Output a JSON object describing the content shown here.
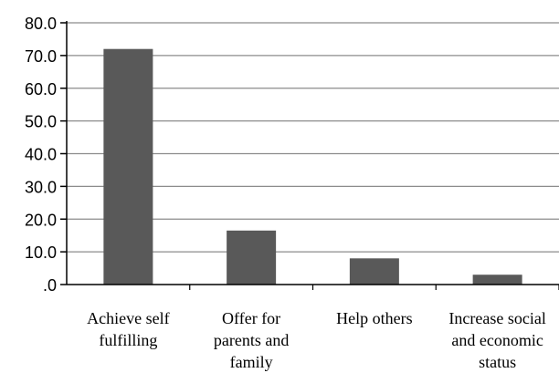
{
  "chart_data": {
    "type": "bar",
    "categories": [
      [
        "Achieve self",
        "fulfilling"
      ],
      [
        "Offer for",
        "parents and",
        "family"
      ],
      [
        "Help others"
      ],
      [
        "Increase social",
        "and economic",
        "status"
      ]
    ],
    "values": [
      72.0,
      16.5,
      8.0,
      3.0
    ],
    "ylim": [
      0,
      80
    ],
    "yticks": [
      {
        "value": 0,
        "label": ".0"
      },
      {
        "value": 10,
        "label": "10.0"
      },
      {
        "value": 20,
        "label": "20.0"
      },
      {
        "value": 30,
        "label": "30.0"
      },
      {
        "value": 40,
        "label": "40.0"
      },
      {
        "value": 50,
        "label": "50.0"
      },
      {
        "value": 60,
        "label": "60.0"
      },
      {
        "value": 70,
        "label": "70.0"
      },
      {
        "value": 80,
        "label": "80.0"
      }
    ],
    "grid": true,
    "legend": "none",
    "bar_color": "#595959",
    "grid_color": "#8c8c8c"
  }
}
